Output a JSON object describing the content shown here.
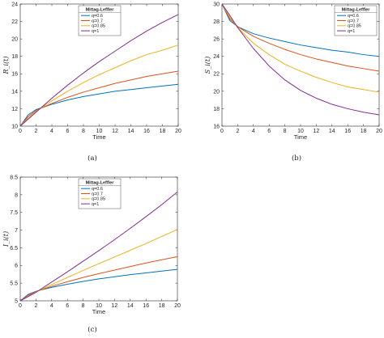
{
  "chart_data": [
    {
      "type": "line",
      "caption": "(a)",
      "xlabel": "Time",
      "ylabel": "R_i(t)",
      "xlim": [
        0,
        20
      ],
      "ylim": [
        10,
        24
      ],
      "xticks": [
        0,
        2,
        4,
        6,
        8,
        10,
        12,
        14,
        16,
        18,
        20
      ],
      "yticks": [
        10,
        12,
        14,
        16,
        18,
        20,
        22,
        24
      ],
      "grid": false,
      "legend": {
        "title": "Mittag-Leffler",
        "position": "top-left"
      },
      "x": [
        0,
        1,
        2,
        4,
        6,
        8,
        10,
        12,
        14,
        16,
        18,
        20
      ],
      "series": [
        {
          "name": "q=0.6",
          "color": "#0072BD",
          "values": [
            10.0,
            11.3,
            11.9,
            12.5,
            13.0,
            13.4,
            13.7,
            14.0,
            14.2,
            14.4,
            14.6,
            14.8
          ]
        },
        {
          "name": "q=0.7",
          "color": "#D95319",
          "values": [
            10.0,
            11.1,
            11.8,
            12.6,
            13.3,
            13.9,
            14.4,
            14.9,
            15.3,
            15.7,
            16.0,
            16.3
          ]
        },
        {
          "name": "q=0.85",
          "color": "#EDB120",
          "values": [
            10.0,
            10.9,
            11.7,
            12.9,
            14.0,
            15.0,
            15.9,
            16.7,
            17.5,
            18.2,
            18.7,
            19.3
          ]
        },
        {
          "name": "q=1",
          "color": "#7E2F8E",
          "values": [
            10.0,
            10.8,
            11.6,
            13.2,
            14.7,
            16.1,
            17.4,
            18.6,
            19.8,
            20.9,
            21.9,
            22.8
          ]
        }
      ]
    },
    {
      "type": "line",
      "caption": "(b)",
      "xlabel": "Time",
      "ylabel": "S_i(t)",
      "xlim": [
        0,
        20
      ],
      "ylim": [
        16,
        30
      ],
      "xticks": [
        0,
        2,
        4,
        6,
        8,
        10,
        12,
        14,
        16,
        18,
        20
      ],
      "yticks": [
        16,
        18,
        20,
        22,
        24,
        26,
        28,
        30
      ],
      "grid": false,
      "legend": {
        "title": "Mittag-Leffler",
        "position": "top-right"
      },
      "x": [
        0,
        1,
        2,
        4,
        6,
        8,
        10,
        12,
        14,
        16,
        18,
        20
      ],
      "series": [
        {
          "name": "q=0.6",
          "color": "#0072BD",
          "values": [
            30.0,
            28.1,
            27.4,
            26.6,
            26.1,
            25.7,
            25.3,
            25.0,
            24.7,
            24.5,
            24.2,
            24.0
          ]
        },
        {
          "name": "q=0.7",
          "color": "#D95319",
          "values": [
            30.0,
            28.3,
            27.4,
            26.3,
            25.5,
            24.8,
            24.2,
            23.7,
            23.3,
            22.9,
            22.6,
            22.3
          ]
        },
        {
          "name": "q=0.85",
          "color": "#EDB120",
          "values": [
            30.0,
            28.5,
            27.3,
            25.5,
            24.2,
            23.1,
            22.3,
            21.6,
            21.0,
            20.5,
            20.2,
            19.9
          ]
        },
        {
          "name": "q=1",
          "color": "#7E2F8E",
          "values": [
            30.0,
            28.7,
            27.3,
            24.9,
            22.9,
            21.3,
            20.1,
            19.2,
            18.5,
            18.0,
            17.6,
            17.3
          ]
        }
      ]
    },
    {
      "type": "line",
      "caption": "(c)",
      "xlabel": "Time",
      "ylabel": "I_i(t)",
      "xlim": [
        0,
        20
      ],
      "ylim": [
        5,
        8.5
      ],
      "xticks": [
        0,
        2,
        4,
        6,
        8,
        10,
        12,
        14,
        16,
        18,
        20
      ],
      "yticks": [
        5,
        5.5,
        6,
        6.5,
        7,
        7.5,
        8,
        8.5
      ],
      "grid": false,
      "legend": {
        "title": "Mittag-Leffler",
        "position": "top-left"
      },
      "x": [
        0,
        1,
        2,
        4,
        6,
        8,
        10,
        12,
        14,
        16,
        18,
        20
      ],
      "series": [
        {
          "name": "q=0.6",
          "color": "#0072BD",
          "values": [
            5.0,
            5.18,
            5.27,
            5.38,
            5.47,
            5.55,
            5.62,
            5.68,
            5.74,
            5.79,
            5.84,
            5.89
          ]
        },
        {
          "name": "q=0.7",
          "color": "#D95319",
          "values": [
            5.0,
            5.16,
            5.26,
            5.41,
            5.54,
            5.66,
            5.77,
            5.87,
            5.97,
            6.07,
            6.16,
            6.25
          ]
        },
        {
          "name": "q=0.85",
          "color": "#EDB120",
          "values": [
            5.0,
            5.13,
            5.25,
            5.46,
            5.66,
            5.86,
            6.05,
            6.24,
            6.43,
            6.62,
            6.82,
            7.02
          ]
        },
        {
          "name": "q=1",
          "color": "#7E2F8E",
          "values": [
            5.0,
            5.12,
            5.24,
            5.53,
            5.82,
            6.12,
            6.42,
            6.73,
            7.05,
            7.38,
            7.72,
            8.08
          ]
        }
      ]
    }
  ]
}
